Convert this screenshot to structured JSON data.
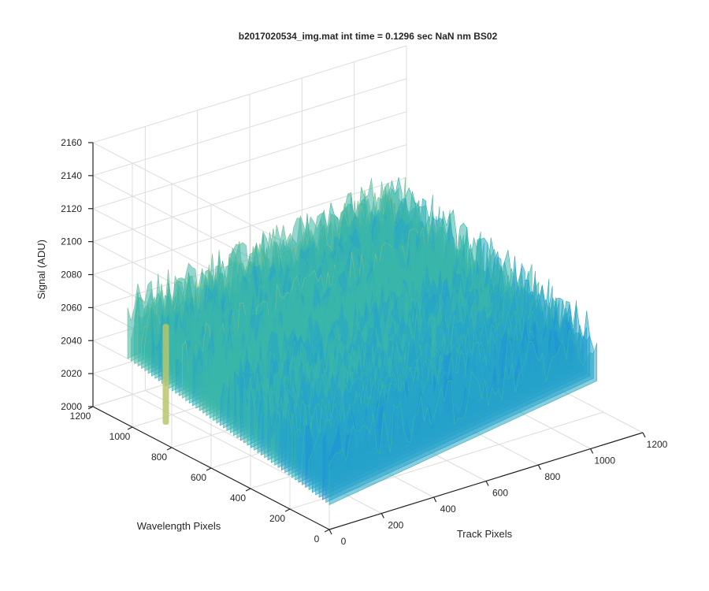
{
  "chart_data": {
    "type": "surface",
    "title": "b2017020534_img.mat int time = 0.1296 sec  NaN nm BS02",
    "xlabel": "Track Pixels",
    "ylabel": "Wavelength Pixels",
    "zlabel": "Signal (ADU)",
    "xlim": [
      0,
      1200
    ],
    "ylim": [
      0,
      1200
    ],
    "zlim": [
      2000,
      2160
    ],
    "x_ticks": [
      "0",
      "200",
      "400",
      "600",
      "800",
      "1000",
      "1200"
    ],
    "y_ticks": [
      "0",
      "200",
      "400",
      "600",
      "800",
      "1000",
      "1200"
    ],
    "z_ticks": [
      "2000",
      "2020",
      "2040",
      "2060",
      "2080",
      "2100",
      "2120",
      "2140",
      "2160"
    ],
    "data_extent": {
      "x": [
        0,
        1024
      ],
      "y": [
        0,
        1024
      ]
    },
    "surface_level": {
      "front": 2040,
      "middle": 2065,
      "back": 2090,
      "noise_range": 30
    },
    "hot_column": {
      "x": 0,
      "y": 830,
      "z": 2055
    },
    "colormap": [
      "#0c6fd6",
      "#1d8fd8",
      "#26a4c9",
      "#3bb6a9",
      "#78bf8e",
      "#b8c56a",
      "#e8c443"
    ],
    "grid": true
  }
}
